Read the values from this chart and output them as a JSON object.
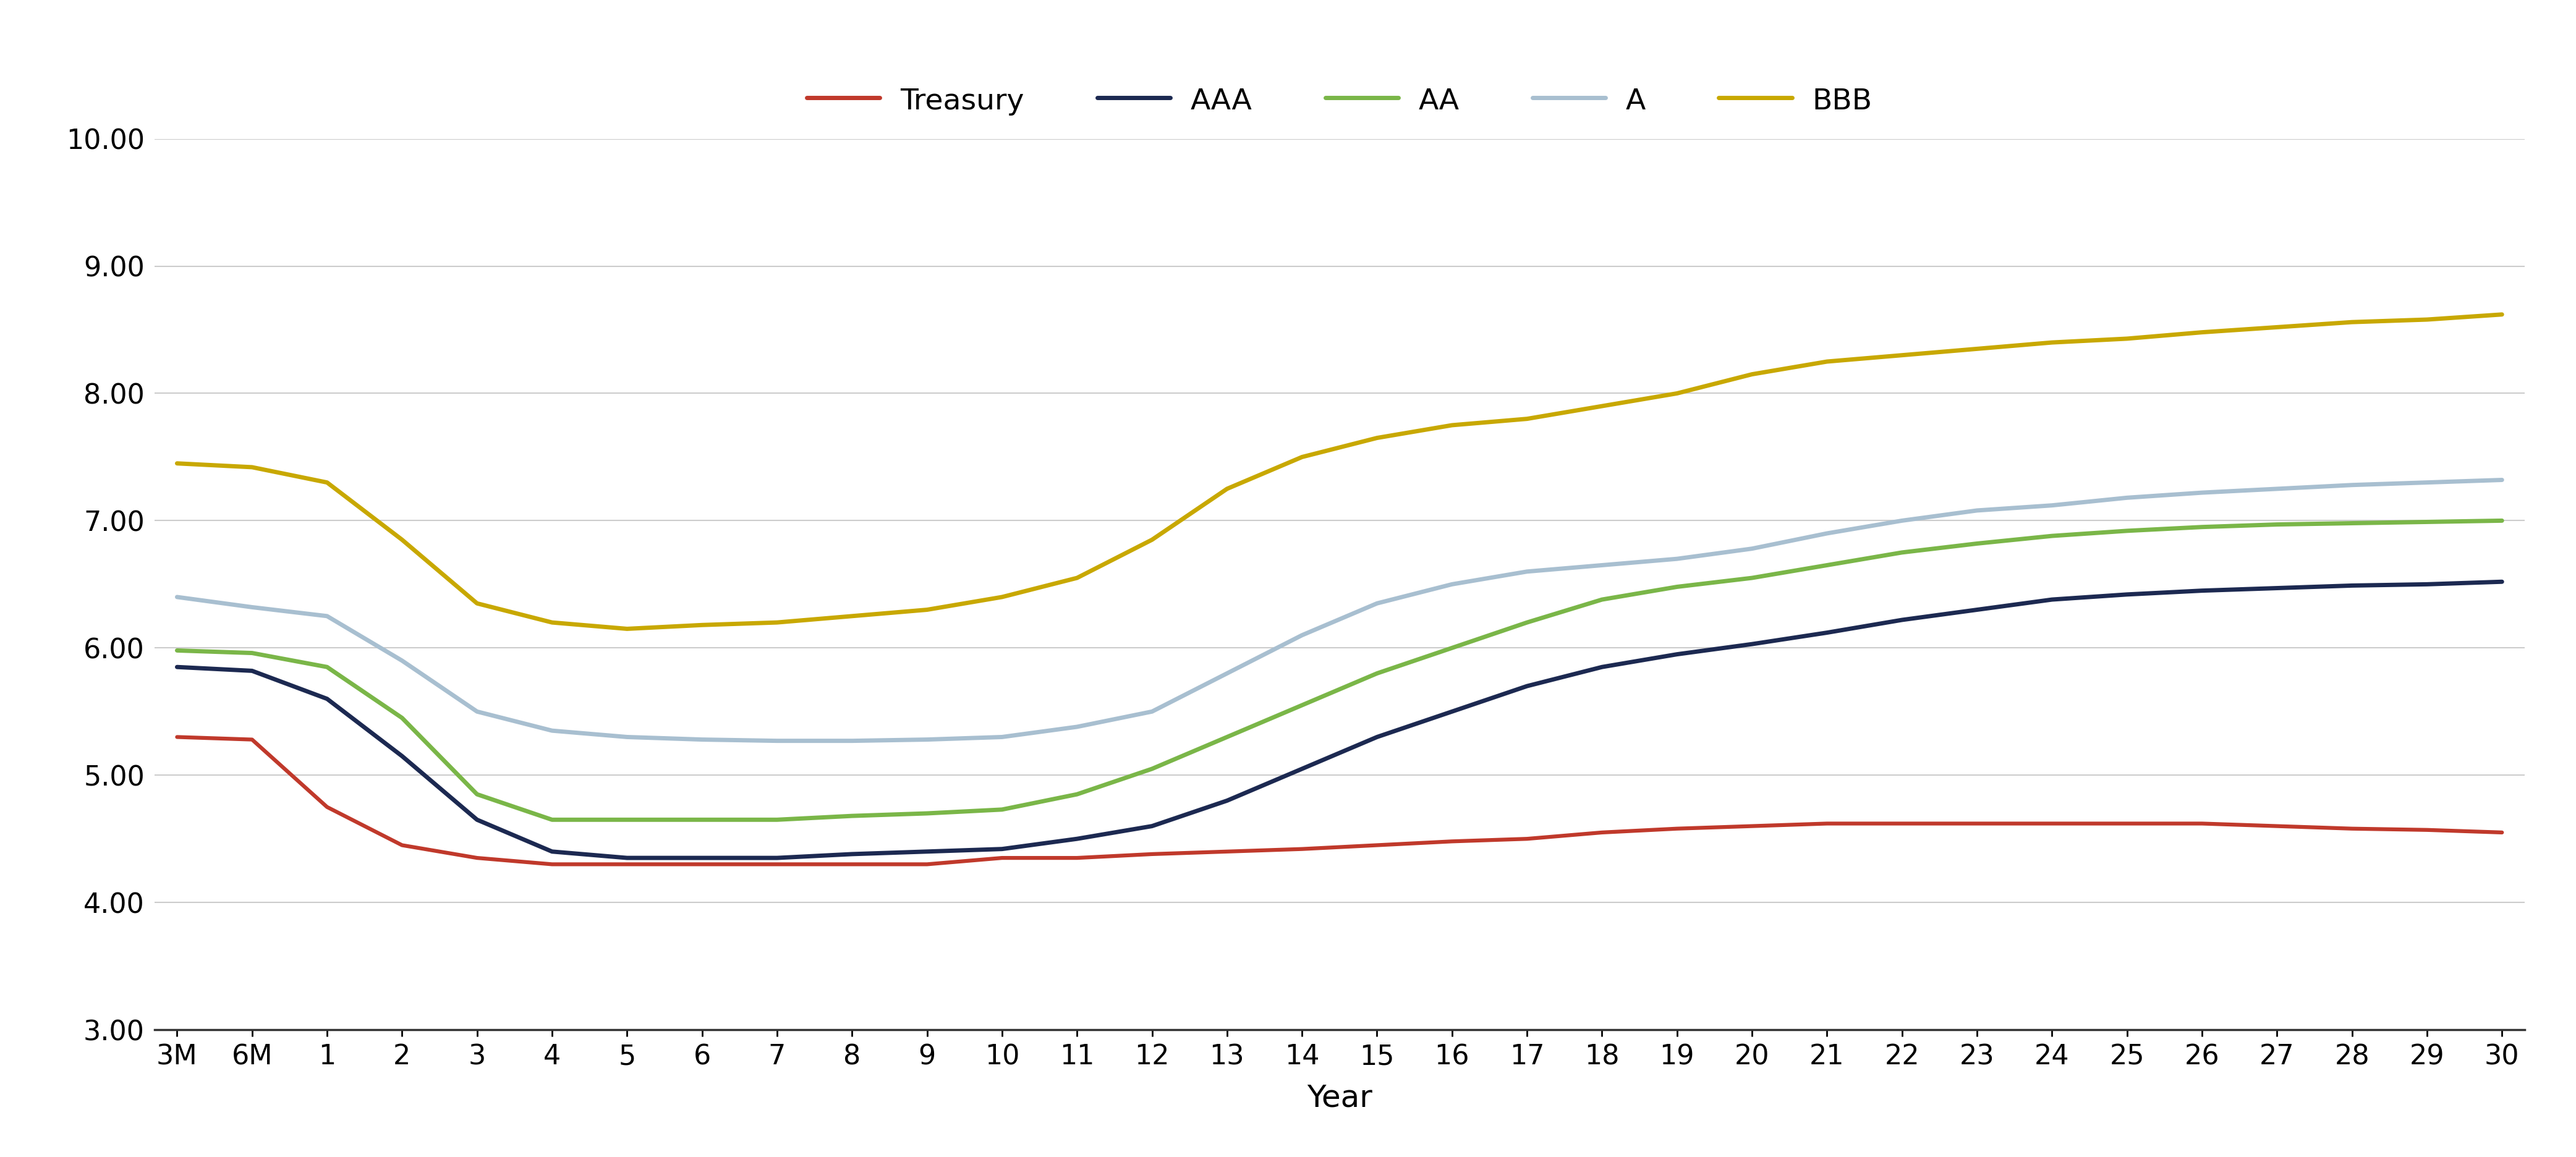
{
  "x_labels": [
    "3M",
    "6M",
    "1",
    "2",
    "3",
    "4",
    "5",
    "6",
    "7",
    "8",
    "9",
    "10",
    "11",
    "12",
    "13",
    "14",
    "15",
    "16",
    "17",
    "18",
    "19",
    "20",
    "21",
    "22",
    "23",
    "24",
    "25",
    "26",
    "27",
    "28",
    "29",
    "30"
  ],
  "treasury": [
    5.3,
    5.28,
    4.75,
    4.45,
    4.35,
    4.3,
    4.3,
    4.3,
    4.3,
    4.3,
    4.3,
    4.35,
    4.35,
    4.38,
    4.4,
    4.42,
    4.45,
    4.48,
    4.5,
    4.55,
    4.58,
    4.6,
    4.62,
    4.62,
    4.62,
    4.62,
    4.62,
    4.62,
    4.6,
    4.58,
    4.57,
    4.55
  ],
  "aaa": [
    5.85,
    5.82,
    5.6,
    5.15,
    4.65,
    4.4,
    4.35,
    4.35,
    4.35,
    4.38,
    4.4,
    4.42,
    4.5,
    4.6,
    4.8,
    5.05,
    5.3,
    5.5,
    5.7,
    5.85,
    5.95,
    6.03,
    6.12,
    6.22,
    6.3,
    6.38,
    6.42,
    6.45,
    6.47,
    6.49,
    6.5,
    6.52
  ],
  "aa": [
    5.98,
    5.96,
    5.85,
    5.45,
    4.85,
    4.65,
    4.65,
    4.65,
    4.65,
    4.68,
    4.7,
    4.73,
    4.85,
    5.05,
    5.3,
    5.55,
    5.8,
    6.0,
    6.2,
    6.38,
    6.48,
    6.55,
    6.65,
    6.75,
    6.82,
    6.88,
    6.92,
    6.95,
    6.97,
    6.98,
    6.99,
    7.0
  ],
  "a": [
    6.4,
    6.32,
    6.25,
    5.9,
    5.5,
    5.35,
    5.3,
    5.28,
    5.27,
    5.27,
    5.28,
    5.3,
    5.38,
    5.5,
    5.8,
    6.1,
    6.35,
    6.5,
    6.6,
    6.65,
    6.7,
    6.78,
    6.9,
    7.0,
    7.08,
    7.12,
    7.18,
    7.22,
    7.25,
    7.28,
    7.3,
    7.32
  ],
  "bbb": [
    7.45,
    7.42,
    7.3,
    6.85,
    6.35,
    6.2,
    6.15,
    6.18,
    6.2,
    6.25,
    6.3,
    6.4,
    6.55,
    6.85,
    7.25,
    7.5,
    7.65,
    7.75,
    7.8,
    7.9,
    8.0,
    8.15,
    8.25,
    8.3,
    8.35,
    8.4,
    8.43,
    8.48,
    8.52,
    8.56,
    8.58,
    8.62
  ],
  "treasury_color": "#c0392b",
  "aaa_color": "#1c2951",
  "aa_color": "#7ab648",
  "a_color": "#a8bfd0",
  "bbb_color": "#c8a800",
  "line_width": 4.5,
  "ylim": [
    3.0,
    10.0
  ],
  "yticks": [
    3.0,
    4.0,
    5.0,
    6.0,
    7.0,
    8.0,
    9.0,
    10.0
  ],
  "ytick_labels": [
    "3.00",
    "4.00",
    "5.00",
    "6.00",
    "7.00",
    "8.00",
    "9.00",
    "10.00"
  ],
  "xlabel": "Year",
  "grid_color": "#cccccc",
  "tick_fontsize": 32,
  "xlabel_fontsize": 36,
  "legend_fontsize": 34
}
